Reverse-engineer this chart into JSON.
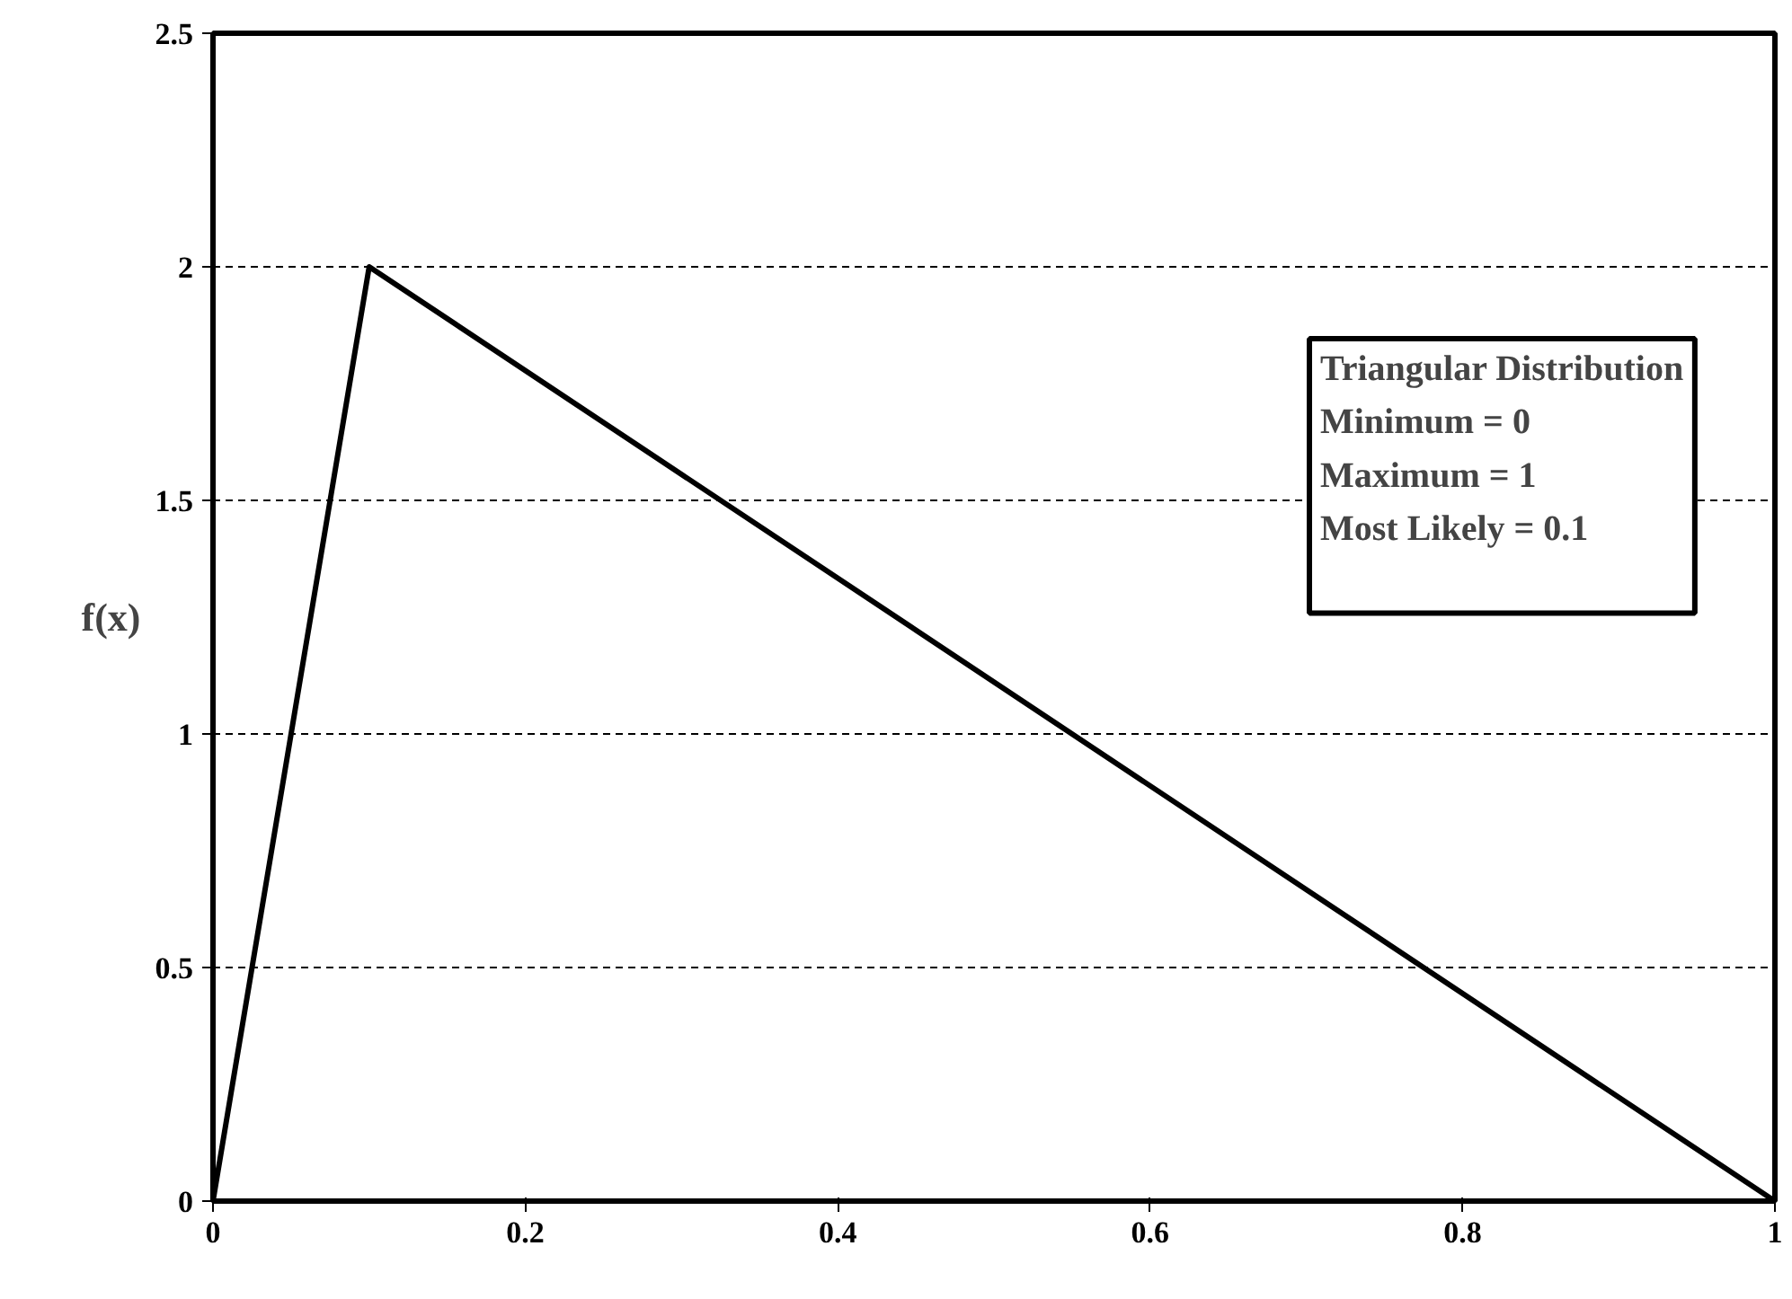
{
  "chart_data": {
    "type": "line",
    "ylabel": "f(x)",
    "x": [
      0,
      0.1,
      1
    ],
    "series": [
      {
        "color": "#000000",
        "values": [
          0,
          2,
          0
        ]
      }
    ],
    "xlim": [
      0,
      1
    ],
    "xticks": [
      0,
      0.2,
      0.4,
      0.6,
      0.8,
      1
    ],
    "ylim": [
      0,
      2.5
    ],
    "yticks": [
      0,
      0.5,
      1,
      1.5,
      2,
      2.5
    ],
    "grid": "y",
    "marker": "none",
    "line_style": "solid",
    "annotations": [
      "Triangular Distribution",
      "Minimum = 0",
      "Maximum = 1",
      "Most Likely = 0.1"
    ]
  }
}
